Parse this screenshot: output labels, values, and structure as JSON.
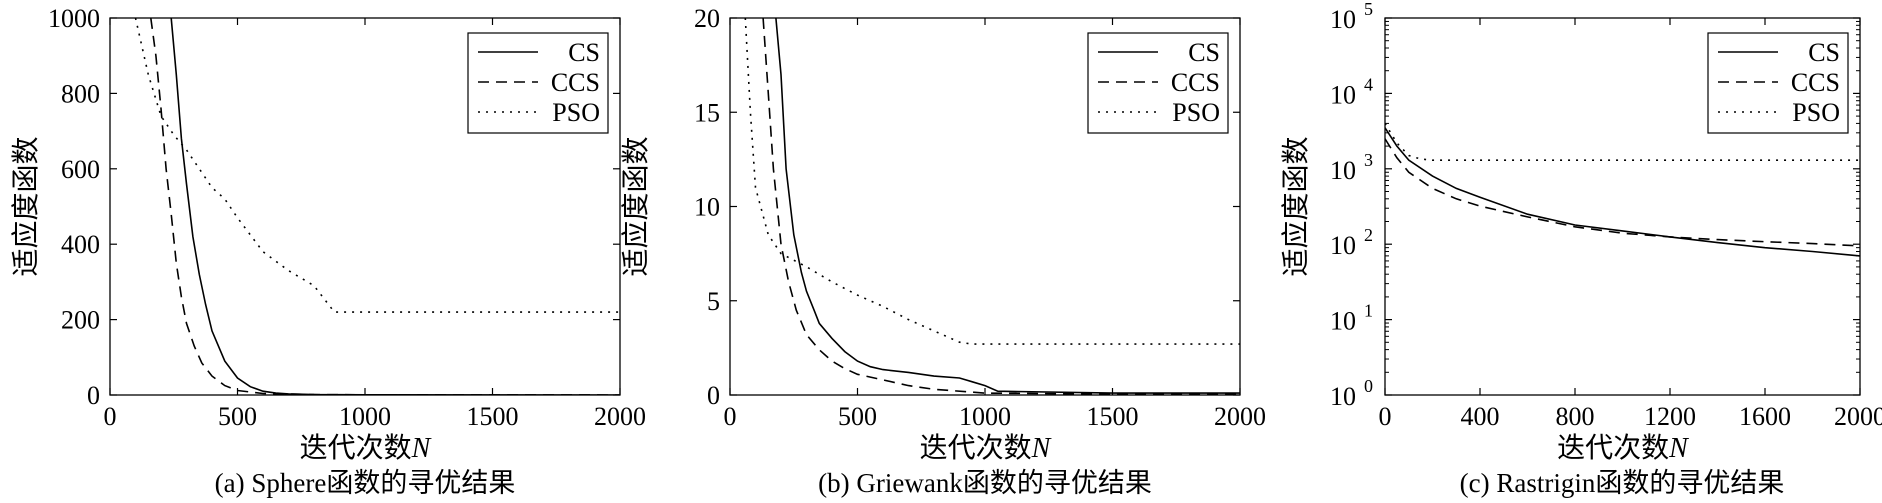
{
  "chart_data": [
    {
      "type": "line",
      "title": "",
      "caption": "(a) Sphere函数的寻优结果",
      "xlabel": "迭代次数",
      "xlabel_var": "N",
      "ylabel": "适应度函数",
      "xlim": [
        0,
        2000
      ],
      "ylim": [
        0,
        1000
      ],
      "yscale": "linear",
      "xticks": [
        0,
        500,
        1000,
        1500,
        2000
      ],
      "xtick_labels": [
        "0",
        "500",
        "1000",
        "1500",
        "2000"
      ],
      "yticks": [
        0,
        200,
        400,
        600,
        800,
        1000
      ],
      "ytick_labels": [
        "0",
        "200",
        "400",
        "600",
        "800",
        "1000"
      ],
      "grid": false,
      "legend_position": "top-right",
      "series": [
        {
          "name": "CS",
          "style": "solid",
          "x": [
            240,
            260,
            280,
            300,
            325,
            350,
            375,
            400,
            450,
            500,
            550,
            600,
            650,
            700,
            800,
            1000,
            1500,
            2000
          ],
          "y": [
            1000,
            850,
            680,
            560,
            420,
            320,
            240,
            170,
            90,
            45,
            22,
            10,
            5,
            3,
            1,
            0.5,
            0.2,
            0.1
          ]
        },
        {
          "name": "CCS",
          "style": "dashed",
          "x": [
            160,
            180,
            200,
            220,
            240,
            260,
            280,
            300,
            330,
            360,
            400,
            450,
            500,
            600,
            800,
            1000,
            1500,
            2000
          ],
          "y": [
            1000,
            900,
            760,
            600,
            480,
            350,
            260,
            190,
            130,
            85,
            50,
            25,
            12,
            4,
            1,
            0.5,
            0.2,
            0.1
          ]
        },
        {
          "name": "PSO",
          "style": "dotted",
          "x": [
            100,
            150,
            200,
            250,
            300,
            350,
            400,
            450,
            500,
            600,
            700,
            800,
            880,
            1000,
            1500,
            2000
          ],
          "y": [
            1000,
            850,
            740,
            690,
            650,
            600,
            550,
            520,
            470,
            380,
            330,
            290,
            220,
            220,
            220,
            220
          ]
        }
      ]
    },
    {
      "type": "line",
      "title": "",
      "caption": "(b) Griewank函数的寻优结果",
      "xlabel": "迭代次数",
      "xlabel_var": "N",
      "ylabel": "适应度函数",
      "xlim": [
        0,
        2000
      ],
      "ylim": [
        0,
        20
      ],
      "yscale": "linear",
      "xticks": [
        0,
        500,
        1000,
        1500,
        2000
      ],
      "xtick_labels": [
        "0",
        "500",
        "1000",
        "1500",
        "2000"
      ],
      "yticks": [
        0,
        5,
        10,
        15,
        20
      ],
      "ytick_labels": [
        "0",
        "5",
        "10",
        "15",
        "20"
      ],
      "grid": false,
      "legend_position": "top-right",
      "series": [
        {
          "name": "CS",
          "style": "solid",
          "x": [
            180,
            200,
            220,
            250,
            280,
            300,
            330,
            350,
            400,
            450,
            500,
            550,
            600,
            700,
            800,
            900,
            950,
            1000,
            1050,
            1500,
            2000
          ],
          "y": [
            20,
            17,
            12,
            8.5,
            6.5,
            5.5,
            4.5,
            3.8,
            3,
            2.3,
            1.8,
            1.5,
            1.35,
            1.2,
            1.0,
            0.9,
            0.7,
            0.5,
            0.2,
            0.1,
            0.1
          ]
        },
        {
          "name": "CCS",
          "style": "dashed",
          "x": [
            130,
            150,
            170,
            200,
            230,
            260,
            300,
            350,
            400,
            450,
            500,
            600,
            700,
            800,
            1000,
            1500,
            2000
          ],
          "y": [
            20,
            16,
            12,
            8,
            6,
            4.5,
            3.2,
            2.4,
            1.8,
            1.4,
            1.1,
            0.8,
            0.5,
            0.3,
            0.1,
            0.05,
            0.05
          ]
        },
        {
          "name": "PSO",
          "style": "dotted",
          "x": [
            60,
            80,
            100,
            150,
            200,
            300,
            400,
            500,
            600,
            700,
            800,
            900,
            950,
            1000,
            1500,
            2000
          ],
          "y": [
            20,
            15,
            11,
            8.5,
            7.5,
            6.8,
            6.0,
            5.3,
            4.7,
            4.0,
            3.4,
            2.8,
            2.7,
            2.7,
            2.7,
            2.7
          ]
        }
      ]
    },
    {
      "type": "line",
      "title": "",
      "caption": "(c) Rastrigin函数的寻优结果",
      "xlabel": "迭代次数",
      "xlabel_var": "N",
      "ylabel": "适应度函数",
      "xlim": [
        0,
        2000
      ],
      "ylim": [
        1,
        100000
      ],
      "yscale": "log",
      "xticks": [
        0,
        400,
        800,
        1200,
        1600,
        2000
      ],
      "xtick_labels": [
        "0",
        "400",
        "800",
        "1200",
        "1600",
        "2000"
      ],
      "yticks": [
        1,
        10,
        100,
        1000,
        10000,
        100000
      ],
      "ytick_base": "10",
      "ytick_exponents": [
        "0",
        "1",
        "2",
        "3",
        "4",
        "5"
      ],
      "grid": false,
      "legend_position": "top-right",
      "series": [
        {
          "name": "CS",
          "style": "solid",
          "x": [
            0,
            50,
            100,
            200,
            300,
            400,
            600,
            800,
            1000,
            1200,
            1400,
            1600,
            1800,
            2000
          ],
          "y": [
            3500,
            2000,
            1300,
            800,
            550,
            420,
            250,
            180,
            150,
            125,
            105,
            90,
            80,
            70
          ]
        },
        {
          "name": "CCS",
          "style": "dashed",
          "x": [
            0,
            50,
            100,
            200,
            300,
            400,
            600,
            800,
            1000,
            1200,
            1400,
            1600,
            1800,
            2000
          ],
          "y": [
            2500,
            1400,
            900,
            550,
            400,
            320,
            230,
            170,
            140,
            125,
            115,
            108,
            102,
            95
          ]
        },
        {
          "name": "PSO",
          "style": "dotted",
          "x": [
            0,
            50,
            100,
            150,
            200,
            400,
            800,
            1200,
            1600,
            2000
          ],
          "y": [
            4000,
            2200,
            1500,
            1350,
            1300,
            1300,
            1300,
            1300,
            1300,
            1300
          ]
        }
      ]
    }
  ]
}
